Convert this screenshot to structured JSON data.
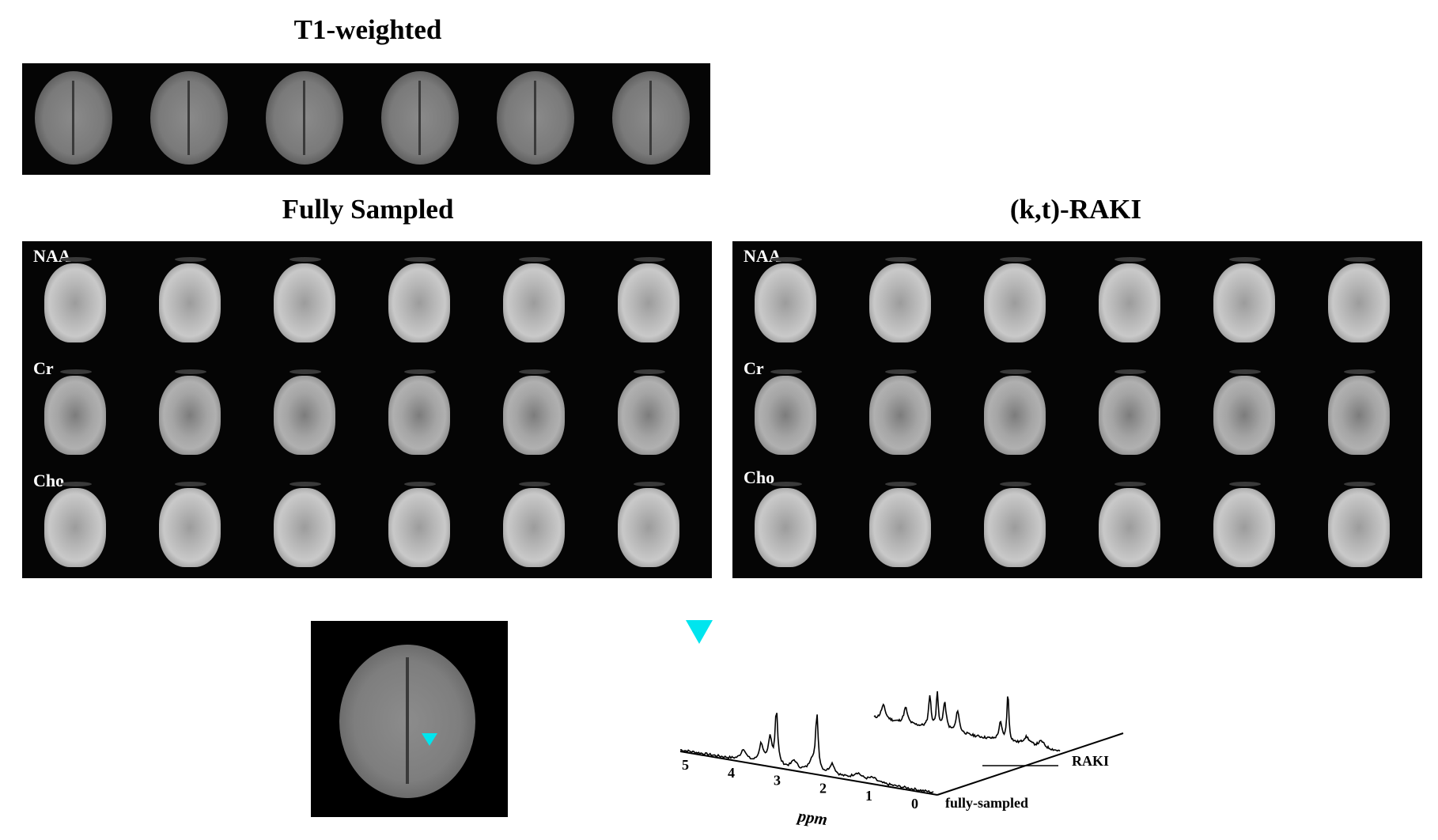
{
  "titles": {
    "t1": "T1-weighted",
    "fully_sampled": "Fully Sampled",
    "raki": "(k,t)-RAKI"
  },
  "metabolites": [
    "NAA",
    "Cr",
    "Cho"
  ],
  "spectrum": {
    "x_ticks": [
      "5",
      "4",
      "3",
      "2",
      "1",
      "0"
    ],
    "x_label": "ppm",
    "series_labels": {
      "fully_sampled": "fully-sampled",
      "raki": "RAKI"
    },
    "marker_color": "#00e5ee"
  },
  "chart_data": {
    "type": "line",
    "x_ticks": [
      5,
      4,
      3,
      2,
      1,
      0
    ],
    "xlabel": "ppm",
    "series": [
      {
        "name": "fully-sampled"
      },
      {
        "name": "RAKI"
      }
    ]
  },
  "colors": {
    "panel_bg": "#050505",
    "marker": "#00e5ee"
  }
}
